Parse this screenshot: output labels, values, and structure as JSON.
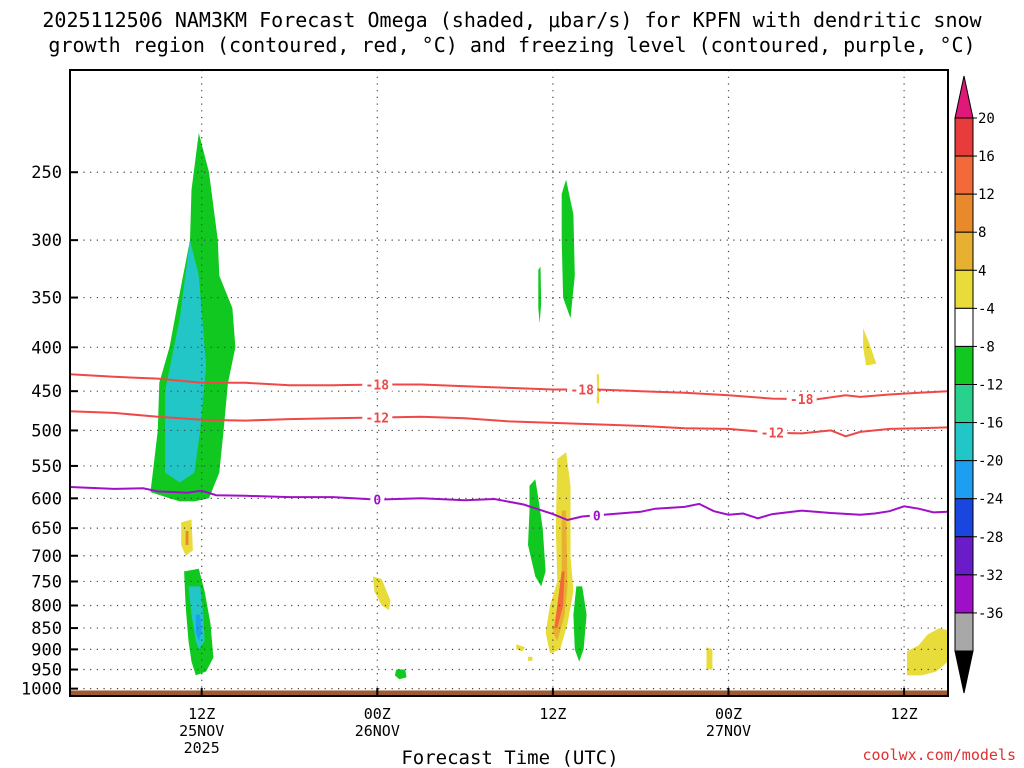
{
  "chart_data": {
    "type": "heatmap",
    "title_line1": "2025112506 NAM3KM Forecast Omega (shaded, μbar/s) for KPFN with dendritic snow",
    "title_line2": "growth region (contoured, red, °C) and freezing level (contoured, purple, °C)",
    "xlabel": "Forecast Time (UTC)",
    "credit": "coolwx.com/models",
    "x_range_hours": [
      -3,
      57
    ],
    "y_range_mb": [
      190,
      1020
    ],
    "x_ticks": [
      {
        "hour": 6,
        "label": "12Z",
        "sub": "25NOV",
        "sub2": "2025"
      },
      {
        "hour": 18,
        "label": "00Z",
        "sub": "26NOV",
        "sub2": ""
      },
      {
        "hour": 30,
        "label": "12Z",
        "sub": "",
        "sub2": ""
      },
      {
        "hour": 42,
        "label": "00Z",
        "sub": "27NOV",
        "sub2": ""
      },
      {
        "hour": 54,
        "label": "12Z",
        "sub": "",
        "sub2": ""
      }
    ],
    "y_ticks": [
      250,
      300,
      350,
      400,
      450,
      500,
      550,
      600,
      650,
      700,
      750,
      800,
      850,
      900,
      950,
      1000
    ],
    "colorbar": {
      "labels": [
        "20",
        "16",
        "12",
        "8",
        "4",
        "-4",
        "-8",
        "-12",
        "-16",
        "-20",
        "-24",
        "-28",
        "-32",
        "-36"
      ],
      "colors": [
        "#e83c3c",
        "#f26a3a",
        "#e88a2c",
        "#e8b030",
        "#e8dc3a",
        "#ffffff",
        "#10c820",
        "#28d28c",
        "#22c6c6",
        "#1e9ef0",
        "#1a46e0",
        "#6a1cc8",
        "#9e10c8",
        "#a8a8a8"
      ],
      "top_color": "#e01878",
      "bottom_color": "#000000"
    },
    "contours": [
      {
        "name": "-18C",
        "color": "#f04848",
        "label": "-18",
        "points": [
          [
            -3,
            430
          ],
          [
            0,
            433
          ],
          [
            3,
            435
          ],
          [
            6,
            440
          ],
          [
            9,
            440
          ],
          [
            12,
            443
          ],
          [
            15,
            443
          ],
          [
            18,
            442
          ],
          [
            21,
            442
          ],
          [
            24,
            444
          ],
          [
            27,
            446
          ],
          [
            30,
            448
          ],
          [
            33,
            448
          ],
          [
            36,
            450
          ],
          [
            39,
            452
          ],
          [
            42,
            455
          ],
          [
            45,
            459
          ],
          [
            48,
            460
          ],
          [
            50,
            455
          ],
          [
            51,
            457
          ],
          [
            53,
            454
          ],
          [
            55,
            452
          ],
          [
            57,
            450
          ]
        ],
        "labels_at_hour": [
          18,
          32,
          47
        ]
      },
      {
        "name": "-12C",
        "color": "#f04848",
        "label": "-12",
        "points": [
          [
            -3,
            475
          ],
          [
            0,
            477
          ],
          [
            3,
            482
          ],
          [
            6,
            486
          ],
          [
            9,
            487
          ],
          [
            12,
            485
          ],
          [
            15,
            484
          ],
          [
            18,
            483
          ],
          [
            21,
            482
          ],
          [
            24,
            484
          ],
          [
            27,
            488
          ],
          [
            30,
            490
          ],
          [
            33,
            492
          ],
          [
            36,
            494
          ],
          [
            39,
            497
          ],
          [
            42,
            498
          ],
          [
            45,
            503
          ],
          [
            47,
            504
          ],
          [
            49,
            500
          ],
          [
            50,
            508
          ],
          [
            51,
            502
          ],
          [
            53,
            498
          ],
          [
            55,
            497
          ],
          [
            57,
            496
          ]
        ],
        "labels_at_hour": [
          18,
          45
        ]
      },
      {
        "name": "0C",
        "color": "#a010c8",
        "label": "0",
        "points": [
          [
            -3,
            582
          ],
          [
            0,
            585
          ],
          [
            2,
            584
          ],
          [
            3,
            589
          ],
          [
            5,
            591
          ],
          [
            6,
            588
          ],
          [
            7,
            595
          ],
          [
            9,
            596
          ],
          [
            12,
            598
          ],
          [
            15,
            598
          ],
          [
            18,
            602
          ],
          [
            21,
            600
          ],
          [
            24,
            603
          ],
          [
            26,
            601
          ],
          [
            28,
            610
          ],
          [
            30,
            626
          ],
          [
            31,
            636
          ],
          [
            32,
            630
          ],
          [
            34,
            626
          ],
          [
            36,
            622
          ],
          [
            37,
            617
          ],
          [
            39,
            614
          ],
          [
            40,
            609
          ],
          [
            41,
            621
          ],
          [
            42,
            627
          ],
          [
            43,
            625
          ],
          [
            44,
            633
          ],
          [
            45,
            626
          ],
          [
            47,
            620
          ],
          [
            49,
            624
          ],
          [
            51,
            627
          ],
          [
            52,
            625
          ],
          [
            53,
            621
          ],
          [
            54,
            613
          ],
          [
            55,
            617
          ],
          [
            56,
            623
          ],
          [
            57,
            622
          ]
        ],
        "labels_at_hour": [
          18,
          33
        ]
      }
    ],
    "shaded_regions": [
      {
        "name": "upward-motion-main",
        "color": "#10c820",
        "band": "-8",
        "points": [
          [
            2.5,
            590
          ],
          [
            3,
            500
          ],
          [
            3.1,
            440
          ],
          [
            3.8,
            400
          ],
          [
            4.3,
            360
          ],
          [
            5.2,
            300
          ],
          [
            5.3,
            262
          ],
          [
            5.8,
            225
          ],
          [
            6.5,
            250
          ],
          [
            7.1,
            300
          ],
          [
            7.2,
            330
          ],
          [
            8.1,
            360
          ],
          [
            8.3,
            400
          ],
          [
            7.8,
            440
          ],
          [
            7.5,
            500
          ],
          [
            7.2,
            560
          ],
          [
            6.5,
            600
          ],
          [
            5.5,
            605
          ],
          [
            4.5,
            605
          ],
          [
            3.8,
            600
          ]
        ]
      },
      {
        "name": "upward-motion-core",
        "color": "#22c6c6",
        "band": "-12",
        "points": [
          [
            3.5,
            560
          ],
          [
            3.5,
            450
          ],
          [
            4.5,
            370
          ],
          [
            5.2,
            300
          ],
          [
            5.8,
            330
          ],
          [
            6.3,
            420
          ],
          [
            5.9,
            500
          ],
          [
            5.5,
            560
          ],
          [
            4.5,
            575
          ]
        ]
      },
      {
        "name": "upward-motion-lower",
        "color": "#10c820",
        "band": "-8",
        "points": [
          [
            4.8,
            730
          ],
          [
            5.8,
            725
          ],
          [
            6.2,
            770
          ],
          [
            6.6,
            840
          ],
          [
            6.8,
            920
          ],
          [
            6.3,
            955
          ],
          [
            5.6,
            965
          ],
          [
            5.3,
            930
          ],
          [
            5.1,
            880
          ],
          [
            4.9,
            800
          ]
        ]
      },
      {
        "name": "upward-motion-lower-core",
        "color": "#22c6c6",
        "band": "-12",
        "points": [
          [
            5.1,
            760
          ],
          [
            5.9,
            760
          ],
          [
            6.1,
            820
          ],
          [
            6.2,
            880
          ],
          [
            5.8,
            900
          ],
          [
            5.6,
            880
          ],
          [
            5.3,
            820
          ]
        ]
      },
      {
        "name": "upward-motion-lower-max",
        "color": "#1e9ef0",
        "band": "-16",
        "points": [
          [
            5.6,
            820
          ],
          [
            5.9,
            820
          ],
          [
            6.0,
            860
          ],
          [
            5.8,
            880
          ],
          [
            5.6,
            860
          ]
        ]
      },
      {
        "name": "downward-motion-1",
        "color": "#e8dc3a",
        "band": "4",
        "points": [
          [
            4.6,
            640
          ],
          [
            5.3,
            635
          ],
          [
            5.4,
            690
          ],
          [
            4.9,
            700
          ],
          [
            4.6,
            680
          ]
        ]
      },
      {
        "name": "downward-motion-1-core",
        "color": "#e88a2c",
        "band": "12",
        "points": [
          [
            4.9,
            655
          ],
          [
            5.1,
            655
          ],
          [
            5.1,
            680
          ],
          [
            4.9,
            680
          ]
        ]
      },
      {
        "name": "upper-green-a",
        "color": "#10c820",
        "band": "-8",
        "points": [
          [
            30.6,
            265
          ],
          [
            30.9,
            255
          ],
          [
            31.4,
            280
          ],
          [
            31.5,
            330
          ],
          [
            31.2,
            370
          ],
          [
            30.7,
            350
          ],
          [
            30.6,
            300
          ]
        ]
      },
      {
        "name": "upper-green-b",
        "color": "#10c820",
        "band": "-8",
        "points": [
          [
            29.0,
            325
          ],
          [
            29.15,
            322
          ],
          [
            29.2,
            355
          ],
          [
            29.1,
            375
          ],
          [
            29.0,
            360
          ]
        ]
      },
      {
        "name": "mid-green-a",
        "color": "#10c820",
        "band": "-8",
        "points": [
          [
            28.4,
            580
          ],
          [
            28.8,
            570
          ],
          [
            29.0,
            600
          ],
          [
            29.3,
            650
          ],
          [
            29.5,
            730
          ],
          [
            29.2,
            760
          ],
          [
            28.8,
            740
          ],
          [
            28.3,
            680
          ],
          [
            28.4,
            620
          ]
        ]
      },
      {
        "name": "mid-yellow-column",
        "color": "#e8dc3a",
        "band": "4",
        "points": [
          [
            30.3,
            540
          ],
          [
            30.9,
            530
          ],
          [
            31.2,
            580
          ],
          [
            31.2,
            700
          ],
          [
            31.4,
            770
          ],
          [
            31.0,
            840
          ],
          [
            30.5,
            900
          ],
          [
            29.8,
            910
          ],
          [
            29.5,
            860
          ],
          [
            29.8,
            800
          ],
          [
            30.3,
            750
          ],
          [
            30.2,
            650
          ]
        ]
      },
      {
        "name": "mid-orange-column",
        "color": "#e8b030",
        "band": "8",
        "points": [
          [
            30.6,
            620
          ],
          [
            30.9,
            620
          ],
          [
            31.0,
            760
          ],
          [
            30.8,
            820
          ],
          [
            30.3,
            880
          ],
          [
            30.0,
            860
          ],
          [
            30.3,
            800
          ],
          [
            30.6,
            730
          ]
        ]
      },
      {
        "name": "mid-red-column",
        "color": "#f26a3a",
        "band": "12",
        "points": [
          [
            30.6,
            730
          ],
          [
            30.8,
            730
          ],
          [
            30.7,
            800
          ],
          [
            30.3,
            850
          ],
          [
            30.1,
            850
          ],
          [
            30.3,
            800
          ]
        ]
      },
      {
        "name": "mid-green-b",
        "color": "#10c820",
        "band": "-8",
        "points": [
          [
            31.6,
            760
          ],
          [
            32.0,
            760
          ],
          [
            32.3,
            820
          ],
          [
            32.1,
            900
          ],
          [
            31.8,
            930
          ],
          [
            31.5,
            900
          ],
          [
            31.4,
            820
          ]
        ]
      },
      {
        "name": "yellow-small-1",
        "color": "#e8dc3a",
        "band": "4",
        "points": [
          [
            17.7,
            740
          ],
          [
            18.3,
            745
          ],
          [
            18.9,
            790
          ],
          [
            18.8,
            810
          ],
          [
            18.3,
            800
          ],
          [
            17.8,
            770
          ]
        ]
      },
      {
        "name": "yellow-small-2",
        "color": "#e8dc3a",
        "band": "4",
        "points": [
          [
            33.0,
            430
          ],
          [
            33.15,
            430
          ],
          [
            33.15,
            465
          ],
          [
            33.0,
            465
          ]
        ]
      },
      {
        "name": "yellow-small-3",
        "color": "#e8dc3a",
        "band": "4",
        "points": [
          [
            51.2,
            380
          ],
          [
            51.6,
            395
          ],
          [
            52.1,
            418
          ],
          [
            51.4,
            420
          ],
          [
            51.2,
            400
          ]
        ]
      },
      {
        "name": "yellow-small-4",
        "color": "#e8dc3a",
        "band": "4",
        "points": [
          [
            27.5,
            888
          ],
          [
            28.1,
            895
          ],
          [
            27.9,
            905
          ],
          [
            27.5,
            900
          ]
        ]
      },
      {
        "name": "yellow-small-5",
        "color": "#e8dc3a",
        "band": "4",
        "points": [
          [
            28.3,
            918
          ],
          [
            28.6,
            918
          ],
          [
            28.6,
            928
          ],
          [
            28.3,
            928
          ]
        ]
      },
      {
        "name": "yellow-small-6",
        "color": "#e8dc3a",
        "band": "4",
        "points": [
          [
            40.5,
            895
          ],
          [
            40.9,
            900
          ],
          [
            40.9,
            950
          ],
          [
            40.5,
            950
          ]
        ]
      },
      {
        "name": "yellow-lower-right",
        "color": "#e8dc3a",
        "band": "4",
        "points": [
          [
            54.2,
            905
          ],
          [
            55.0,
            890
          ],
          [
            55.6,
            865
          ],
          [
            56.4,
            850
          ],
          [
            57,
            855
          ],
          [
            57,
            930
          ],
          [
            56.2,
            955
          ],
          [
            55.2,
            965
          ],
          [
            54.2,
            965
          ]
        ]
      },
      {
        "name": "green-small-near-surface",
        "color": "#10c820",
        "band": "-8",
        "points": [
          [
            19.3,
            950
          ],
          [
            19.9,
            950
          ],
          [
            20.0,
            970
          ],
          [
            19.5,
            975
          ],
          [
            19.2,
            965
          ]
        ]
      }
    ],
    "terrain": {
      "color": "#9e5a30",
      "surface_pressure_mb": 1005
    }
  }
}
